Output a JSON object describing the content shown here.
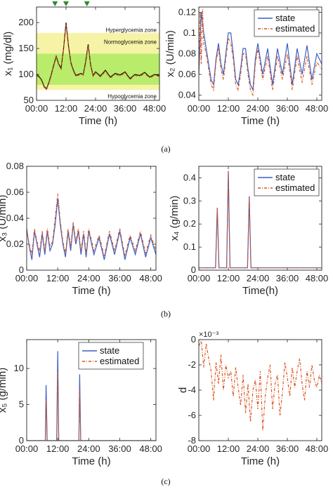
{
  "colors": {
    "state": "#3b5fc4",
    "estimated": "#d9541f",
    "marker": "#2a8a2a",
    "hyper_band": "#f7f3a6",
    "normo_band": "#b9ec6a"
  },
  "captions": [
    "(a)",
    "(b)",
    "(c)"
  ],
  "chart_data": [
    {
      "type": "line",
      "id": "x1",
      "ylabel": "x₁ (mg/dl)",
      "xlabel": "Time (h)",
      "xlim": [
        0,
        50
      ],
      "ylim": [
        50,
        230
      ],
      "xticks": [
        0,
        12,
        24,
        36,
        48
      ],
      "xticklabels": [
        "00:00",
        "12:00",
        "24:00",
        "36:00",
        "48:00"
      ],
      "yticks": [
        50,
        100,
        150,
        200
      ],
      "yticklabels": [
        "50",
        "100",
        "150",
        "200"
      ],
      "bands": [
        {
          "from": 70,
          "to": 180,
          "label": "Normoglycemia zone"
        },
        {
          "from": 80,
          "to": 140,
          "label": ""
        }
      ],
      "band_labels": [
        {
          "text": "Hyperglycemia zone",
          "y": 186
        },
        {
          "text": "Normoglycemia zone",
          "y": 163
        },
        {
          "text": "Hypoglycemia zone",
          "y": 58
        }
      ],
      "markers_x": [
        7.5,
        12,
        20.5
      ],
      "series": [
        {
          "x": [
            0,
            1,
            2,
            3,
            4,
            5,
            6,
            7,
            8,
            9,
            10,
            11,
            12,
            13,
            14,
            15,
            16,
            17,
            18,
            19,
            20,
            21,
            22,
            23,
            24,
            26,
            28,
            30,
            32,
            34,
            36,
            38,
            40,
            42,
            44,
            46,
            48,
            50
          ],
          "y": [
            100,
            96,
            90,
            78,
            72,
            84,
            100,
            118,
            135,
            120,
            112,
            150,
            200,
            155,
            122,
            108,
            98,
            100,
            102,
            100,
            125,
            158,
            118,
            98,
            105,
            97,
            108,
            95,
            102,
            99,
            105,
            92,
            100,
            98,
            104,
            95,
            100,
            98
          ]
        },
        {
          "x": [
            0,
            1,
            2,
            3,
            4,
            5,
            6,
            7,
            8,
            9,
            10,
            11,
            12,
            13,
            14,
            15,
            16,
            17,
            18,
            19,
            20,
            21,
            22,
            23,
            24,
            26,
            28,
            30,
            32,
            34,
            36,
            38,
            40,
            42,
            44,
            46,
            48,
            50
          ],
          "y": [
            98,
            94,
            88,
            76,
            70,
            82,
            98,
            116,
            133,
            118,
            110,
            148,
            196,
            152,
            120,
            106,
            96,
            98,
            100,
            98,
            122,
            155,
            116,
            96,
            103,
            95,
            106,
            93,
            100,
            97,
            103,
            90,
            98,
            96,
            102,
            93,
            98,
            96
          ]
        }
      ]
    },
    {
      "type": "line",
      "id": "x2",
      "ylabel": "x₂ (U/min)",
      "xlabel": "Time (h)",
      "xlim": [
        0,
        50
      ],
      "ylim": [
        0.035,
        0.125
      ],
      "xticks": [
        0,
        12,
        24,
        36,
        48
      ],
      "xticklabels": [
        "00:00",
        "12:00",
        "24:00",
        "36:00",
        "48:00"
      ],
      "yticks": [
        0.04,
        0.06,
        0.08,
        0.1,
        0.12
      ],
      "yticklabels": [
        "0.04",
        "0.06",
        "0.08",
        "0.1",
        "0.12"
      ],
      "legend": [
        "state",
        "estimated"
      ],
      "series": [
        {
          "name": "state",
          "x": [
            0,
            1,
            2,
            3,
            4,
            5,
            6,
            7,
            8,
            9,
            10,
            11,
            12,
            13,
            14,
            15,
            16,
            17,
            18,
            19,
            20,
            21,
            22,
            23,
            24,
            26,
            28,
            30,
            32,
            34,
            36,
            38,
            40,
            42,
            44,
            46,
            48,
            50
          ],
          "y": [
            0.06,
            0.12,
            0.1,
            0.085,
            0.07,
            0.055,
            0.05,
            0.075,
            0.09,
            0.07,
            0.06,
            0.08,
            0.1,
            0.1,
            0.08,
            0.055,
            0.05,
            0.065,
            0.085,
            0.085,
            0.065,
            0.05,
            0.045,
            0.075,
            0.09,
            0.06,
            0.085,
            0.05,
            0.085,
            0.06,
            0.09,
            0.05,
            0.085,
            0.06,
            0.088,
            0.055,
            0.08,
            0.07
          ]
        },
        {
          "name": "estimated",
          "x": [
            0,
            0.5,
            1,
            1.5,
            2,
            3,
            4,
            5,
            6,
            7,
            8,
            9,
            10,
            11,
            12,
            13,
            14,
            15,
            16,
            17,
            18,
            19,
            20,
            21,
            22,
            23,
            24,
            26,
            28,
            30,
            32,
            34,
            36,
            38,
            40,
            42,
            44,
            46,
            48,
            50
          ],
          "y": [
            0.06,
            0.12,
            0.07,
            0.123,
            0.09,
            0.08,
            0.065,
            0.05,
            0.045,
            0.072,
            0.085,
            0.065,
            0.055,
            0.075,
            0.095,
            0.09,
            0.075,
            0.05,
            0.045,
            0.06,
            0.08,
            0.08,
            0.06,
            0.045,
            0.04,
            0.07,
            0.085,
            0.055,
            0.078,
            0.045,
            0.078,
            0.055,
            0.08,
            0.045,
            0.078,
            0.052,
            0.078,
            0.05,
            0.072,
            0.065
          ]
        }
      ]
    },
    {
      "type": "line",
      "id": "x3",
      "ylabel": "x₃ (U/min)",
      "xlabel": "Time (h)",
      "xlim": [
        0,
        50
      ],
      "ylim": [
        0,
        0.08
      ],
      "xticks": [
        0,
        12,
        24,
        36,
        48
      ],
      "xticklabels": [
        "00:00",
        "12:00",
        "24:00",
        "36:00",
        "48:00"
      ],
      "yticks": [
        0,
        0.02,
        0.04,
        0.06,
        0.08
      ],
      "yticklabels": [
        "0",
        "0.02",
        "0.04",
        "0.06",
        "0.08"
      ],
      "series": [
        {
          "name": "state",
          "x": [
            0,
            1,
            2,
            3,
            4,
            5,
            6,
            7,
            8,
            9,
            10,
            11,
            12,
            13,
            14,
            15,
            16,
            17,
            18,
            19,
            20,
            21,
            22,
            23,
            24,
            26,
            28,
            30,
            32,
            34,
            36,
            38,
            40,
            42,
            44,
            46,
            48,
            50
          ],
          "y": [
            0.032,
            0.018,
            0.008,
            0.03,
            0.02,
            0.01,
            0.028,
            0.012,
            0.03,
            0.015,
            0.02,
            0.035,
            0.055,
            0.035,
            0.02,
            0.01,
            0.03,
            0.015,
            0.035,
            0.02,
            0.03,
            0.012,
            0.028,
            0.01,
            0.03,
            0.012,
            0.025,
            0.008,
            0.028,
            0.012,
            0.03,
            0.008,
            0.025,
            0.012,
            0.028,
            0.01,
            0.025,
            0.012
          ]
        },
        {
          "name": "estimated",
          "x": [
            0,
            1,
            2,
            3,
            4,
            5,
            6,
            7,
            8,
            9,
            10,
            11,
            12,
            13,
            14,
            15,
            16,
            17,
            18,
            19,
            20,
            21,
            22,
            23,
            24,
            26,
            28,
            30,
            32,
            34,
            36,
            38,
            40,
            42,
            44,
            46,
            48,
            50
          ],
          "y": [
            0.03,
            0.02,
            0.012,
            0.032,
            0.022,
            0.014,
            0.03,
            0.015,
            0.032,
            0.018,
            0.022,
            0.04,
            0.059,
            0.038,
            0.022,
            0.013,
            0.032,
            0.018,
            0.037,
            0.022,
            0.032,
            0.015,
            0.03,
            0.013,
            0.032,
            0.015,
            0.027,
            0.011,
            0.03,
            0.015,
            0.032,
            0.011,
            0.027,
            0.015,
            0.03,
            0.013,
            0.027,
            0.015
          ]
        }
      ]
    },
    {
      "type": "line",
      "id": "x4",
      "ylabel": "x₄ (g/min)",
      "xlabel": "Time(h)",
      "xlim": [
        0,
        50
      ],
      "ylim": [
        0,
        0.45
      ],
      "xticks": [
        0,
        12,
        24,
        36,
        48
      ],
      "xticklabels": [
        "00:00",
        "12:00",
        "24:00",
        "36:00",
        "48:00"
      ],
      "yticks": [
        0,
        0.1,
        0.2,
        0.3,
        0.4
      ],
      "yticklabels": [
        "0",
        "0.1",
        "0.2",
        "0.3",
        "0.4"
      ],
      "legend": [
        "state",
        "estimated"
      ],
      "series": [
        {
          "name": "state",
          "x": [
            0,
            6.8,
            7.5,
            8.2,
            11.3,
            12,
            12.7,
            19.8,
            20.5,
            21.2,
            50
          ],
          "y": [
            0.01,
            0.01,
            0.27,
            0.01,
            0.01,
            0.43,
            0.01,
            0.01,
            0.32,
            0.01,
            0.01
          ]
        },
        {
          "name": "estimated",
          "x": [
            0,
            6.8,
            7.5,
            8.2,
            11.3,
            12,
            12.7,
            19.8,
            20.5,
            21.2,
            50
          ],
          "y": [
            0.01,
            0.01,
            0.265,
            0.01,
            0.01,
            0.425,
            0.01,
            0.01,
            0.315,
            0.01,
            0.01
          ]
        }
      ]
    },
    {
      "type": "line",
      "id": "x5",
      "ylabel": "x₅ (g/min)",
      "xlabel": "Time (h)",
      "xlim": [
        0,
        50
      ],
      "ylim": [
        0,
        14
      ],
      "xticks": [
        0,
        12,
        24,
        36,
        48
      ],
      "xticklabels": [
        "00:00",
        "12:00",
        "24:00",
        "36:00",
        "48:00"
      ],
      "yticks": [
        0,
        5,
        10
      ],
      "yticklabels": [
        "0",
        "5",
        "10"
      ],
      "legend": [
        "state",
        "estimated"
      ],
      "series": [
        {
          "name": "state",
          "x": [
            0,
            7.2,
            7.5,
            7.9,
            11.6,
            12,
            12.4,
            20.2,
            20.5,
            20.9,
            50
          ],
          "y": [
            0,
            0,
            7.7,
            0,
            0,
            12.4,
            0,
            0,
            9.2,
            0,
            0
          ]
        },
        {
          "name": "estimated",
          "x": [
            0,
            7.2,
            7.5,
            7.9,
            11.6,
            12,
            12.4,
            20.2,
            20.5,
            20.9,
            50
          ],
          "y": [
            0,
            0,
            5.6,
            0,
            0,
            9.5,
            0,
            0,
            7.0,
            0,
            0
          ]
        }
      ]
    },
    {
      "type": "line",
      "id": "d",
      "ylabel": "d",
      "xlabel": "Time (h)",
      "xlim": [
        0,
        50
      ],
      "ylim": [
        -8,
        0
      ],
      "xticks": [
        0,
        12,
        24,
        36,
        48
      ],
      "xticklabels": [
        "00:00",
        "12:00",
        "24:00",
        "36:00",
        "48:00"
      ],
      "yticks": [
        0,
        -2,
        -4,
        -6,
        -8
      ],
      "yticklabels": [
        "0",
        "-2",
        "-4",
        "-6",
        "-8"
      ],
      "exponent": "×10⁻³",
      "series": [
        {
          "name": "estimated",
          "x": [
            0,
            1,
            2,
            3,
            4,
            5,
            6,
            7,
            8,
            9,
            10,
            11,
            12,
            13,
            14,
            15,
            16,
            17,
            18,
            19,
            20,
            21,
            22,
            23,
            24,
            25,
            26,
            27,
            28,
            29,
            30,
            31,
            32,
            33,
            34,
            35,
            36,
            37,
            38,
            39,
            40,
            41,
            42,
            43,
            44,
            45,
            46,
            47,
            48,
            49,
            50
          ],
          "y": [
            -0.5,
            -0.1,
            -2.2,
            -0.3,
            -1.5,
            -2.5,
            -4.8,
            -1.8,
            -3.5,
            -1.2,
            -4.0,
            -2.0,
            -3.0,
            -2.5,
            -4.5,
            -2.2,
            -3.8,
            -5.2,
            -2.8,
            -5.8,
            -3.5,
            -6.5,
            -4.0,
            -3.2,
            -5.5,
            -2.5,
            -7.2,
            -4.5,
            -3.0,
            -2.0,
            -5.5,
            -3.5,
            -2.8,
            -6.0,
            -4.2,
            -1.8,
            -3.0,
            -4.5,
            -2.2,
            -3.8,
            -2.5,
            -1.5,
            -3.5,
            -4.8,
            -2.5,
            -3.8,
            -2.0,
            -3.2,
            -3.8,
            -2.8,
            -3.5
          ]
        }
      ]
    }
  ]
}
